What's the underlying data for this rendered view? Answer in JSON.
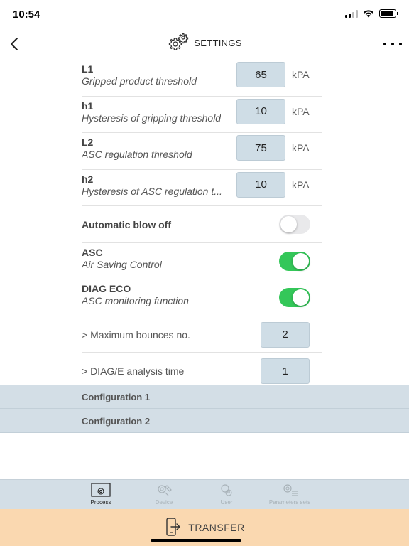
{
  "status": {
    "time": "10:54"
  },
  "nav": {
    "title": "SETTINGS"
  },
  "params": [
    {
      "code": "L1",
      "desc": "Gripped product threshold",
      "value": "65",
      "unit": "kPA"
    },
    {
      "code": "h1",
      "desc": "Hysteresis of gripping threshold",
      "value": "10",
      "unit": "kPA"
    },
    {
      "code": "L2",
      "desc": "ASC regulation threshold",
      "value": "75",
      "unit": "kPA"
    },
    {
      "code": "h2",
      "desc": "Hysteresis of ASC regulation t...",
      "value": "10",
      "unit": "kPA"
    }
  ],
  "toggles": [
    {
      "title": "Automatic blow off",
      "desc": "",
      "on": false
    },
    {
      "title": "ASC",
      "desc": "Air Saving Control",
      "on": true
    },
    {
      "title": "DIAG ECO",
      "desc": "ASC monitoring function",
      "on": true
    }
  ],
  "options": [
    {
      "label": "> Maximum bounces no.",
      "value": "2"
    },
    {
      "label": "> DIAG/E analysis time",
      "value": "1"
    }
  ],
  "configs": [
    "Configuration 1",
    "Configuration 2"
  ],
  "tabs": [
    {
      "label": "Process",
      "icon": "process-icon",
      "active": true
    },
    {
      "label": "Device",
      "icon": "device-icon",
      "active": false
    },
    {
      "label": "User",
      "icon": "user-icon",
      "active": false
    },
    {
      "label": "Parameters sets",
      "icon": "parameters-sets-icon",
      "active": false
    }
  ],
  "transfer": {
    "label": "TRANSFER"
  },
  "colors": {
    "toggle_on": "#34c759",
    "value_box": "#cfdde6",
    "transfer_bg": "#fad8b0",
    "tab_bar_bg": "#d3dee6"
  }
}
